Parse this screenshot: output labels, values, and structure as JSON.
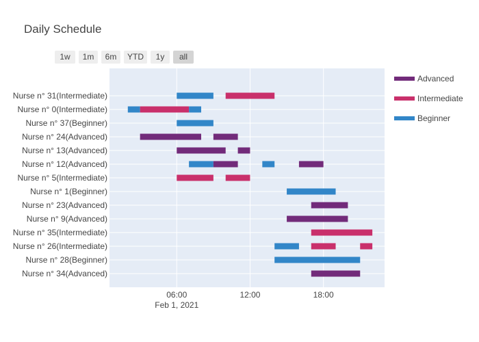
{
  "chart_data": {
    "type": "gantt",
    "title": "Daily Schedule",
    "x_date_label": "Feb 1, 2021",
    "x_range": [
      0.5,
      23.0
    ],
    "x_ticks": [
      {
        "value": 6,
        "label": "06:00"
      },
      {
        "value": 12,
        "label": "12:00"
      },
      {
        "value": 18,
        "label": "18:00"
      }
    ],
    "grid": true,
    "range_buttons": [
      {
        "label": "1w",
        "active": false
      },
      {
        "label": "1m",
        "active": false
      },
      {
        "label": "6m",
        "active": false
      },
      {
        "label": "YTD",
        "active": false
      },
      {
        "label": "1y",
        "active": false
      },
      {
        "label": "all",
        "active": true
      }
    ],
    "legend_position": "right",
    "legend": [
      {
        "name": "Advanced",
        "color": "#722b7a"
      },
      {
        "name": "Intermediate",
        "color": "#c9306b"
      },
      {
        "name": "Beginner",
        "color": "#3286c8"
      }
    ],
    "rows": [
      {
        "label": "Nurse n° 31(Intermediate)",
        "tasks": [
          {
            "level": "Beginner",
            "start": 6,
            "end": 9
          },
          {
            "level": "Intermediate",
            "start": 10,
            "end": 14
          }
        ]
      },
      {
        "label": "Nurse n° 0(Intermediate)",
        "tasks": [
          {
            "level": "Beginner",
            "start": 2,
            "end": 3
          },
          {
            "level": "Intermediate",
            "start": 3,
            "end": 7
          },
          {
            "level": "Beginner",
            "start": 7,
            "end": 8
          }
        ]
      },
      {
        "label": "Nurse n° 37(Beginner)",
        "tasks": [
          {
            "level": "Beginner",
            "start": 6,
            "end": 9
          }
        ]
      },
      {
        "label": "Nurse n° 24(Advanced)",
        "tasks": [
          {
            "level": "Advanced",
            "start": 3,
            "end": 8
          },
          {
            "level": "Advanced",
            "start": 9,
            "end": 11
          }
        ]
      },
      {
        "label": "Nurse n° 13(Advanced)",
        "tasks": [
          {
            "level": "Advanced",
            "start": 6,
            "end": 10
          },
          {
            "level": "Advanced",
            "start": 11,
            "end": 12
          }
        ]
      },
      {
        "label": "Nurse n° 12(Advanced)",
        "tasks": [
          {
            "level": "Beginner",
            "start": 7,
            "end": 9
          },
          {
            "level": "Advanced",
            "start": 9,
            "end": 11
          },
          {
            "level": "Beginner",
            "start": 13,
            "end": 14
          },
          {
            "level": "Advanced",
            "start": 16,
            "end": 18
          }
        ]
      },
      {
        "label": "Nurse n° 5(Intermediate)",
        "tasks": [
          {
            "level": "Intermediate",
            "start": 6,
            "end": 9
          },
          {
            "level": "Intermediate",
            "start": 10,
            "end": 12
          }
        ]
      },
      {
        "label": "Nurse n° 1(Beginner)",
        "tasks": [
          {
            "level": "Beginner",
            "start": 15,
            "end": 19
          }
        ]
      },
      {
        "label": "Nurse n° 23(Advanced)",
        "tasks": [
          {
            "level": "Advanced",
            "start": 17,
            "end": 20
          }
        ]
      },
      {
        "label": "Nurse n° 9(Advanced)",
        "tasks": [
          {
            "level": "Advanced",
            "start": 15,
            "end": 20
          }
        ]
      },
      {
        "label": "Nurse n° 35(Intermediate)",
        "tasks": [
          {
            "level": "Intermediate",
            "start": 17,
            "end": 22
          }
        ]
      },
      {
        "label": "Nurse n° 26(Intermediate)",
        "tasks": [
          {
            "level": "Beginner",
            "start": 14,
            "end": 16
          },
          {
            "level": "Intermediate",
            "start": 17,
            "end": 19
          },
          {
            "level": "Intermediate",
            "start": 21,
            "end": 22
          }
        ]
      },
      {
        "label": "Nurse n° 28(Beginner)",
        "tasks": [
          {
            "level": "Beginner",
            "start": 14,
            "end": 21
          }
        ]
      },
      {
        "label": "Nurse n° 34(Advanced)",
        "tasks": [
          {
            "level": "Advanced",
            "start": 17,
            "end": 21
          }
        ]
      }
    ]
  }
}
